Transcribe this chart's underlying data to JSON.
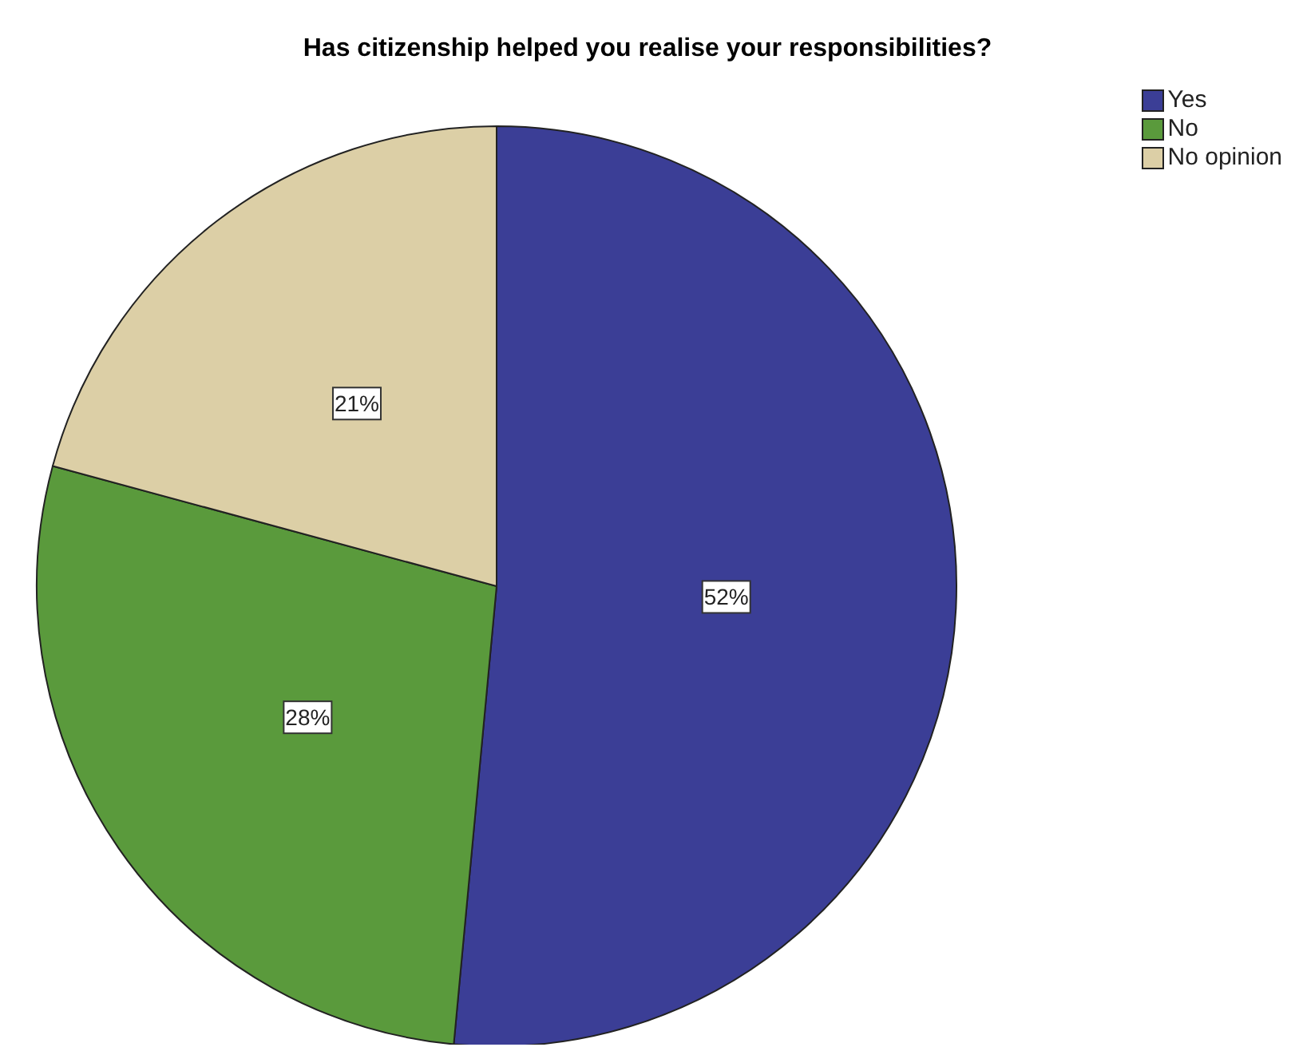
{
  "chart_data": {
    "type": "pie",
    "title": "Has citizenship helped you realise your responsibilities?",
    "categories": [
      "Yes",
      "No",
      "No opinion"
    ],
    "values": [
      52,
      28,
      21
    ],
    "colors": [
      "#3b3e96",
      "#5a9a3c",
      "#dccfa6"
    ],
    "value_labels": [
      "52%",
      "28%",
      "21%"
    ],
    "legend": "top right"
  }
}
